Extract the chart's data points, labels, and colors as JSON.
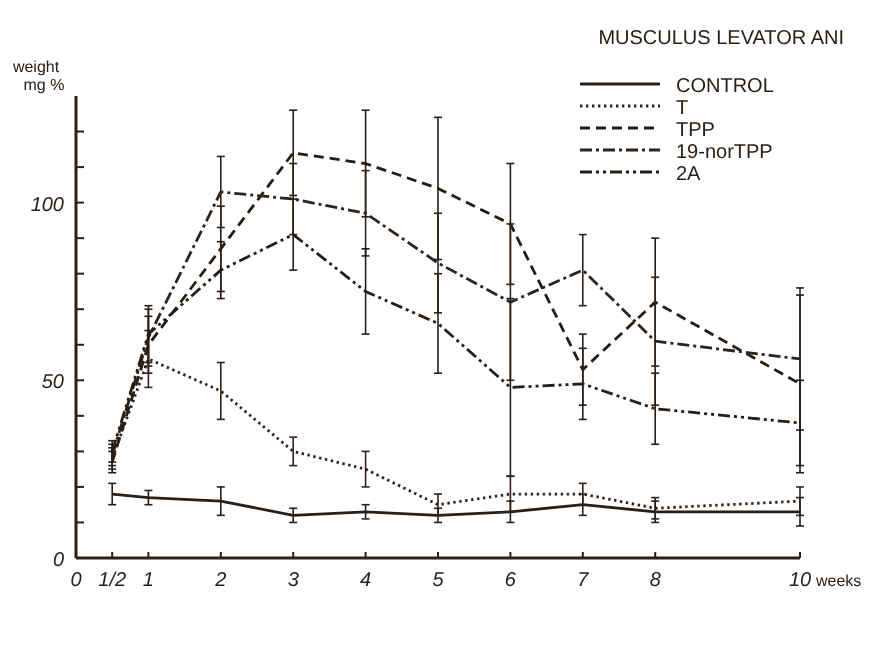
{
  "chart_data": {
    "type": "line",
    "title": "MUSCULUS LEVATOR ANI",
    "xlabel": "weeks",
    "ylabel": "weight mg %",
    "x": [
      0.5,
      1,
      2,
      3,
      4,
      5,
      6,
      7,
      8,
      10
    ],
    "xlim": [
      0,
      10
    ],
    "xticks": [
      0,
      {
        "value": 0.5,
        "label": "1/2"
      },
      1,
      2,
      3,
      4,
      5,
      6,
      7,
      8,
      10
    ],
    "ylim": [
      0,
      130
    ],
    "yticks": [
      0,
      {
        "value": 10,
        "label": null
      },
      {
        "value": 20,
        "label": null
      },
      {
        "value": 30,
        "label": null
      },
      {
        "value": 40,
        "label": null
      },
      50,
      {
        "value": 60,
        "label": null
      },
      {
        "value": 70,
        "label": null
      },
      {
        "value": 80,
        "label": null
      },
      {
        "value": 90,
        "label": null
      },
      100,
      {
        "value": 110,
        "label": null
      },
      {
        "value": 120,
        "label": null
      }
    ],
    "grid": false,
    "legend": "top right",
    "marker": "none",
    "series": [
      {
        "name": "CONTROL",
        "color": "#2a2018",
        "line_style": "solid",
        "values": [
          18,
          17,
          16,
          12,
          13,
          12,
          13,
          15,
          13,
          13
        ],
        "errors": [
          3,
          2,
          4,
          2,
          2,
          2,
          3,
          3,
          3,
          4
        ]
      },
      {
        "name": "T",
        "color": "#30221a",
        "line_style": "dotted",
        "values": [
          28,
          56,
          47,
          30,
          25,
          15,
          18,
          18,
          14,
          16
        ],
        "errors": [
          3,
          8,
          8,
          4,
          5,
          3,
          5,
          3,
          3,
          4
        ]
      },
      {
        "name": "TPP",
        "color": "#251c14",
        "line_style": "dashed",
        "values": [
          27,
          60,
          87,
          114,
          111,
          104,
          94,
          53,
          72,
          49
        ],
        "errors": [
          3,
          8,
          12,
          12,
          15,
          20,
          17,
          10,
          18,
          25
        ]
      },
      {
        "name": "19-norTPP",
        "color": "#2e241c",
        "line_style": "dashed",
        "values": [
          29,
          62,
          103,
          101,
          97,
          83,
          72,
          81,
          61,
          56
        ],
        "errors": [
          3,
          8,
          10,
          10,
          12,
          14,
          22,
          10,
          18,
          20
        ]
      },
      {
        "name": "2A",
        "color": "#281e16",
        "line_style": "dashed",
        "values": [
          30,
          63,
          81,
          91,
          75,
          66,
          48,
          49,
          42,
          38
        ],
        "errors": [
          3,
          8,
          8,
          10,
          12,
          14,
          25,
          10,
          10,
          12
        ]
      }
    ]
  }
}
